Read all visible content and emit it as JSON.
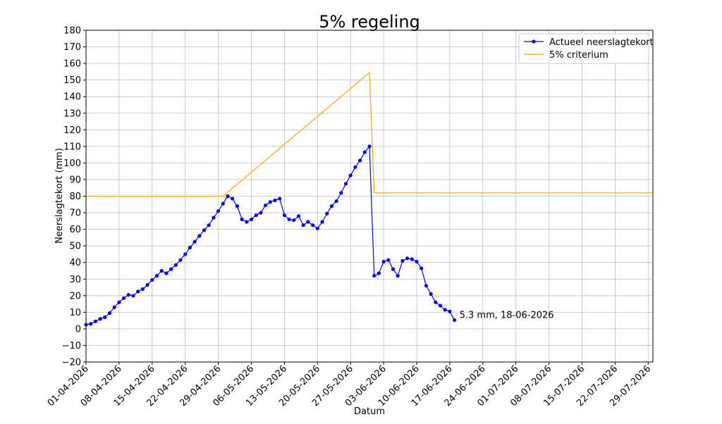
{
  "chart_data": {
    "type": "line",
    "title": "5% regeling",
    "xlabel": "Datum",
    "ylabel": "Neerslagtekort (mm)",
    "xlim": [
      "2026-04-01",
      "2026-07-30"
    ],
    "ylim": [
      -20,
      180
    ],
    "yticks": [
      -20,
      -10,
      0,
      10,
      20,
      30,
      40,
      50,
      60,
      70,
      80,
      90,
      100,
      110,
      120,
      130,
      140,
      150,
      160,
      170,
      180
    ],
    "ytick_labels": [
      "−20",
      "−10",
      "0",
      "10",
      "20",
      "30",
      "40",
      "50",
      "60",
      "70",
      "80",
      "90",
      "100",
      "110",
      "120",
      "130",
      "140",
      "150",
      "160",
      "170",
      "180"
    ],
    "xticks": [
      "2026-04-01",
      "2026-04-08",
      "2026-04-15",
      "2026-04-22",
      "2026-04-29",
      "2026-05-06",
      "2026-05-13",
      "2026-05-20",
      "2026-05-27",
      "2026-06-03",
      "2026-06-10",
      "2026-06-17",
      "2026-06-24",
      "2026-07-01",
      "2026-07-08",
      "2026-07-15",
      "2026-07-22",
      "2026-07-29"
    ],
    "xtick_labels": [
      "01-04-2026",
      "08-04-2026",
      "15-04-2026",
      "22-04-2026",
      "29-04-2026",
      "06-05-2026",
      "13-05-2026",
      "20-05-2026",
      "27-05-2026",
      "03-06-2026",
      "10-06-2026",
      "17-06-2026",
      "24-06-2026",
      "01-07-2026",
      "08-07-2026",
      "15-07-2026",
      "22-07-2026",
      "29-07-2026"
    ],
    "grid": true,
    "legend_position": "top-right",
    "series": [
      {
        "name": "Actueel neerslagtekort",
        "color": "#0000ff",
        "marker": "circle",
        "x": [
          "2026-04-01",
          "2026-04-02",
          "2026-04-03",
          "2026-04-04",
          "2026-04-05",
          "2026-04-06",
          "2026-04-07",
          "2026-04-08",
          "2026-04-09",
          "2026-04-10",
          "2026-04-11",
          "2026-04-12",
          "2026-04-13",
          "2026-04-14",
          "2026-04-15",
          "2026-04-16",
          "2026-04-17",
          "2026-04-18",
          "2026-04-19",
          "2026-04-20",
          "2026-04-21",
          "2026-04-22",
          "2026-04-23",
          "2026-04-24",
          "2026-04-25",
          "2026-04-26",
          "2026-04-27",
          "2026-04-28",
          "2026-04-29",
          "2026-04-30",
          "2026-05-01",
          "2026-05-02",
          "2026-05-03",
          "2026-05-04",
          "2026-05-05",
          "2026-05-06",
          "2026-05-07",
          "2026-05-08",
          "2026-05-09",
          "2026-05-10",
          "2026-05-11",
          "2026-05-12",
          "2026-05-13",
          "2026-05-14",
          "2026-05-15",
          "2026-05-16",
          "2026-05-17",
          "2026-05-18",
          "2026-05-19",
          "2026-05-20",
          "2026-05-21",
          "2026-05-22",
          "2026-05-23",
          "2026-05-24",
          "2026-05-25",
          "2026-05-26",
          "2026-05-27",
          "2026-05-28",
          "2026-05-29",
          "2026-05-30",
          "2026-05-31",
          "2026-06-01",
          "2026-06-02",
          "2026-06-03",
          "2026-06-04",
          "2026-06-05",
          "2026-06-06",
          "2026-06-07",
          "2026-06-08",
          "2026-06-09",
          "2026-06-10",
          "2026-06-11",
          "2026-06-12",
          "2026-06-13",
          "2026-06-14",
          "2026-06-15",
          "2026-06-16",
          "2026-06-17",
          "2026-06-18"
        ],
        "y": [
          2.5,
          3,
          4.5,
          6,
          7,
          9.5,
          13,
          16,
          18.5,
          20.5,
          20,
          22.5,
          24,
          26.5,
          29.5,
          32,
          35,
          33.5,
          36,
          38.5,
          41.5,
          45,
          49,
          52.5,
          56,
          59.5,
          62.5,
          67,
          71,
          75.5,
          80,
          78.5,
          74,
          66,
          64.5,
          66,
          68.5,
          70,
          74.5,
          76.5,
          77.5,
          78.5,
          68.5,
          66,
          65.5,
          68,
          62.5,
          64.5,
          62.5,
          60.5,
          64.5,
          69.5,
          74,
          77,
          82,
          87.5,
          92.5,
          97.5,
          101.5,
          106.5,
          110,
          32,
          33.5,
          40.5,
          41.5,
          36,
          32,
          41,
          42.5,
          42,
          40.5,
          36.5,
          26,
          21,
          16,
          14,
          11.5,
          10.5,
          5.3
        ]
      },
      {
        "name": "5% criterium",
        "color": "#ffa500",
        "marker": "none",
        "x": [
          "2026-04-01",
          "2026-04-30",
          "2026-05-31",
          "2026-06-01",
          "2026-07-30"
        ],
        "y": [
          80,
          80,
          154.5,
          82,
          82
        ]
      }
    ],
    "annotations": [
      {
        "text": "5.3 mm, 18-06-2026",
        "x": "2026-06-18",
        "y": 5.3
      }
    ]
  }
}
